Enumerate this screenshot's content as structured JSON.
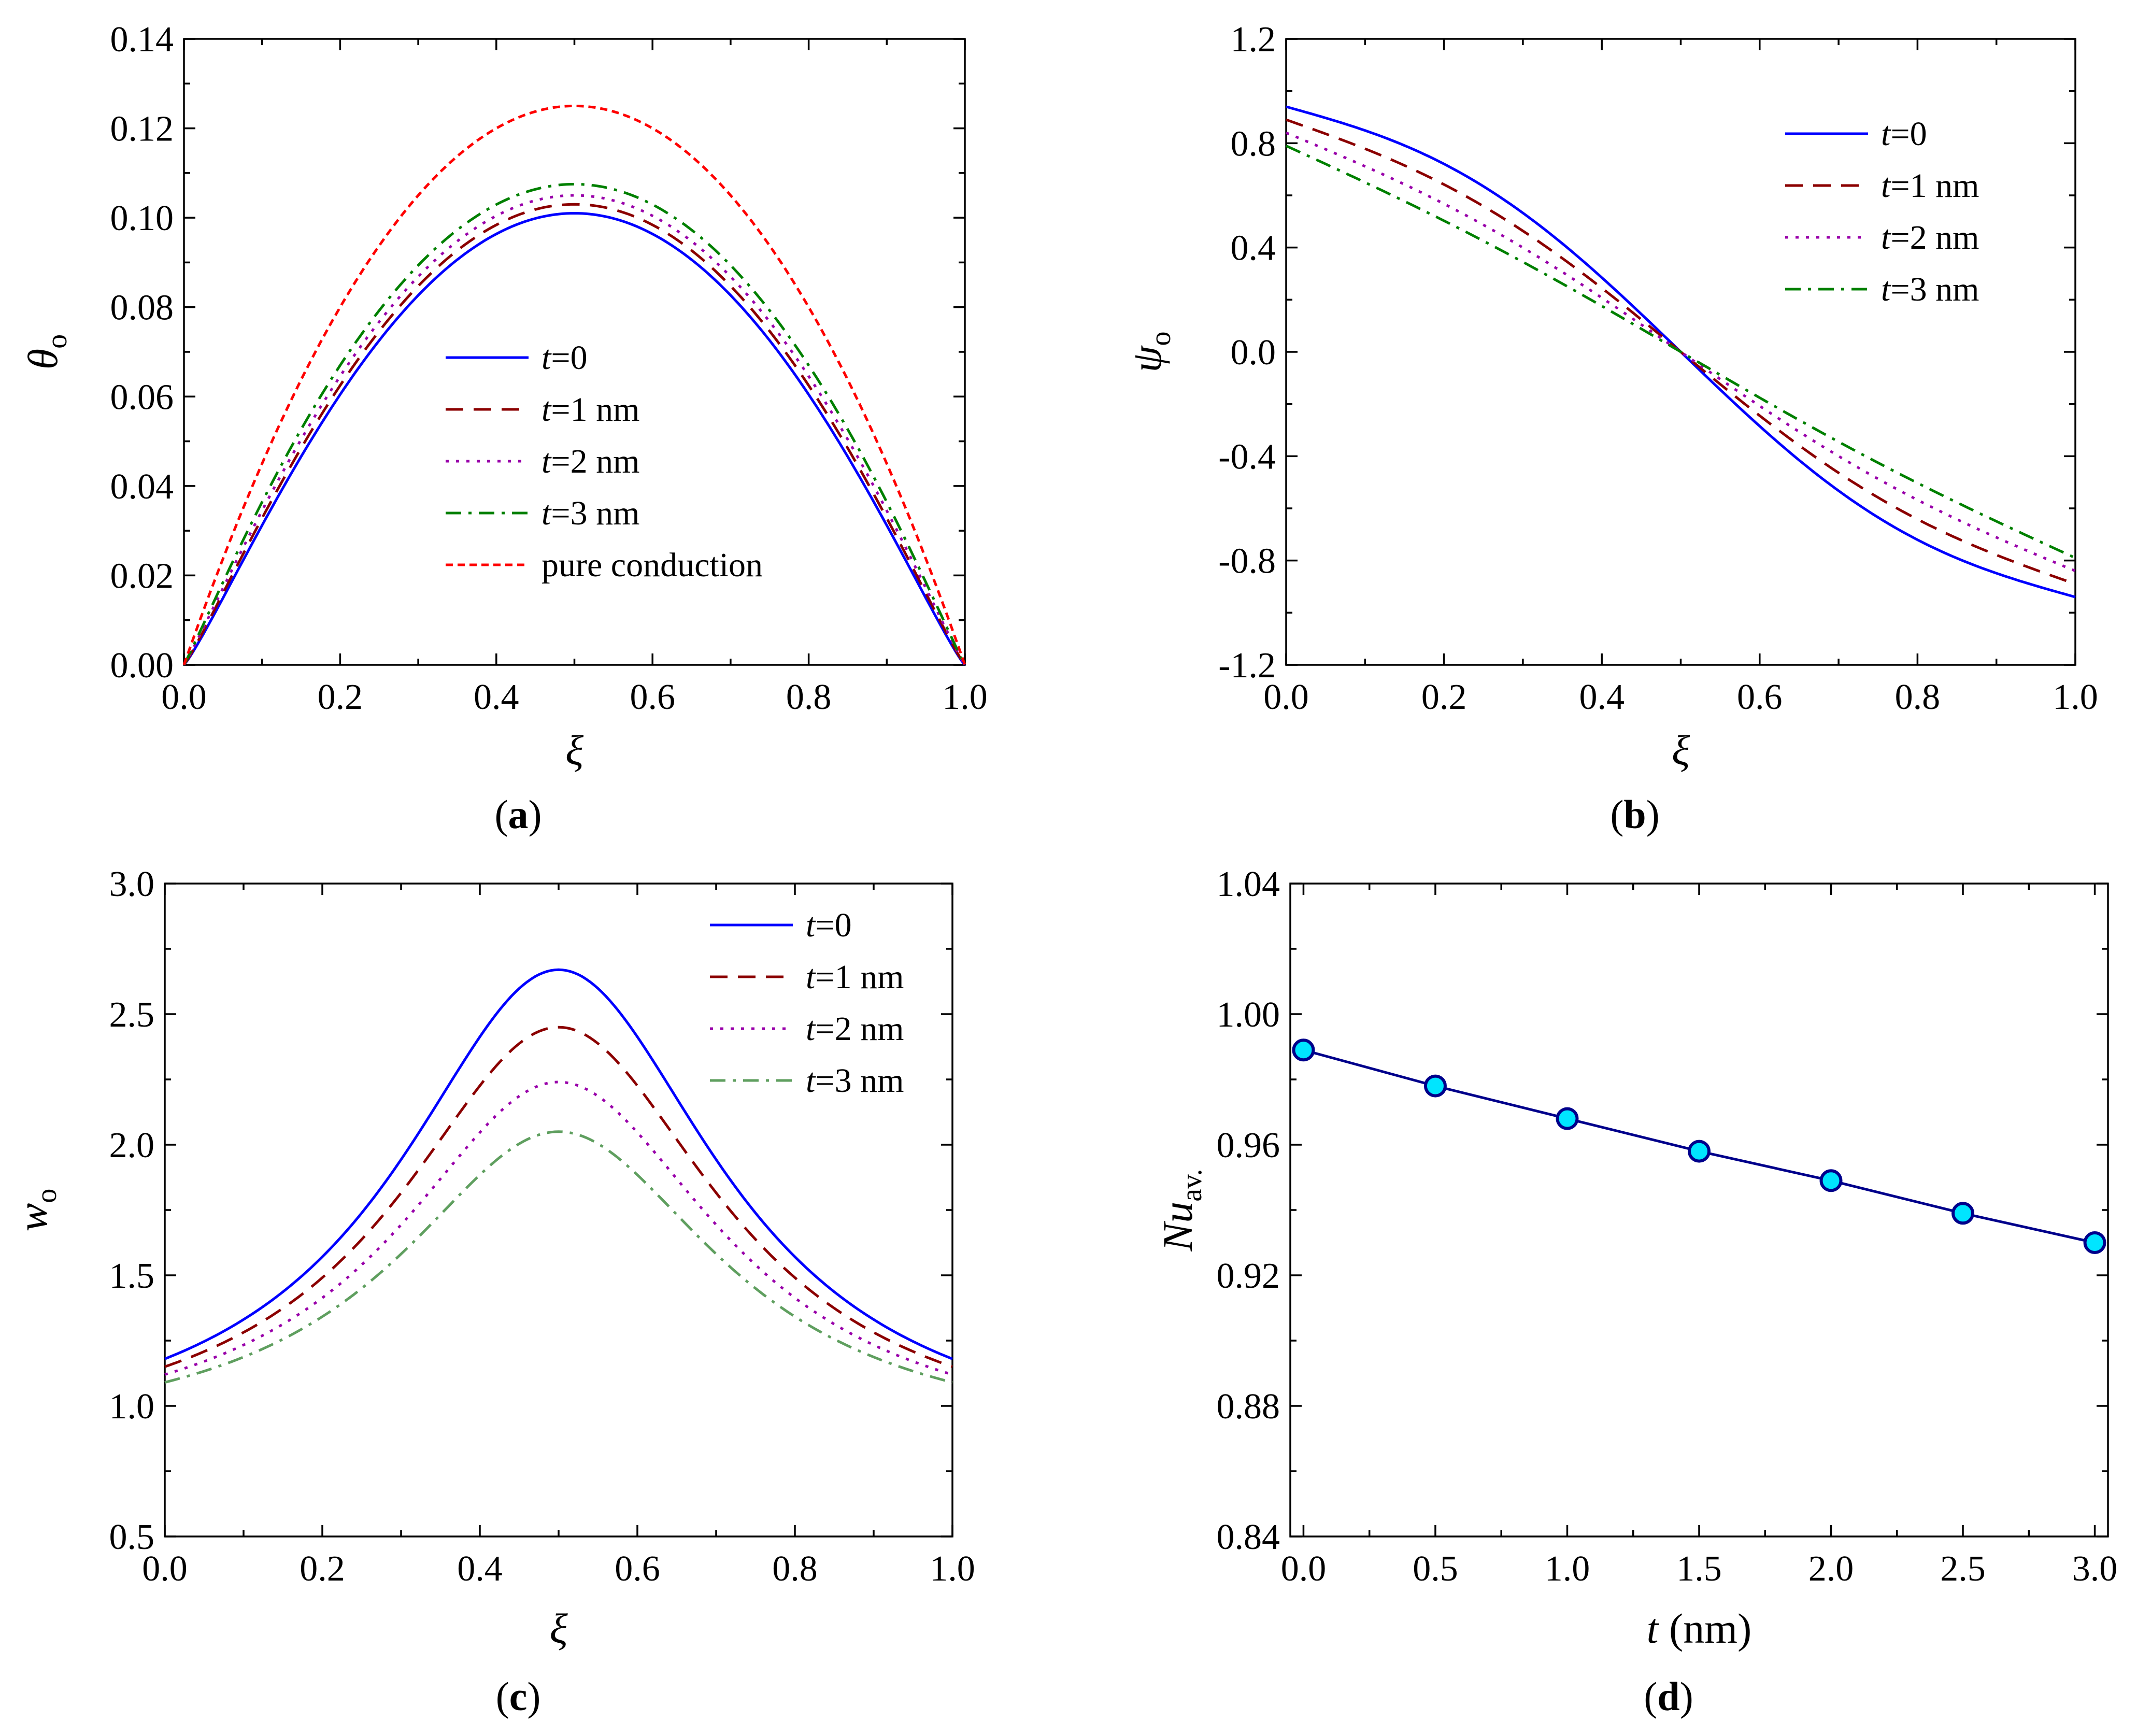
{
  "chart_data": [
    {
      "id": "a",
      "type": "line",
      "caption": "a",
      "xlabel": "ξ",
      "ylabel": "θ",
      "ylabel_sub": "o",
      "xlim": [
        0,
        1
      ],
      "ylim": [
        0,
        0.14
      ],
      "xticks": [
        "0.0",
        "0.2",
        "0.4",
        "0.6",
        "0.8",
        "1.0"
      ],
      "yticks": [
        "0.00",
        "0.02",
        "0.04",
        "0.06",
        "0.08",
        "0.10",
        "0.12",
        "0.14"
      ],
      "legend_position": "center",
      "series": [
        {
          "name": "t=0",
          "var": "t",
          "rest": "=0",
          "color": "#0000ff",
          "dash": "solid",
          "peak": 0.101,
          "exponent": 1.15
        },
        {
          "name": "t=1 nm",
          "var": "t",
          "rest": "=1 nm",
          "color": "#8b0000",
          "dash": "dash",
          "peak": 0.103,
          "exponent": 1.12
        },
        {
          "name": "t=2 nm",
          "var": "t",
          "rest": "=2 nm",
          "color": "#9900aa",
          "dash": "dot",
          "peak": 0.105,
          "exponent": 1.09
        },
        {
          "name": "t=3 nm",
          "var": "t",
          "rest": "=3 nm",
          "color": "#008000",
          "dash": "dashdot",
          "peak": 0.1075,
          "exponent": 1.06
        },
        {
          "name": "pure conduction",
          "var": "",
          "rest": "pure conduction",
          "color": "#ff0000",
          "dash": "shortdash",
          "peak": 0.125,
          "exponent": 1.0
        }
      ]
    },
    {
      "id": "b",
      "type": "line",
      "caption": "b",
      "xlabel": "ξ",
      "ylabel": "ψ",
      "ylabel_sub": "o",
      "xlim": [
        0,
        1
      ],
      "ylim": [
        -1.2,
        1.2
      ],
      "xticks": [
        "0.0",
        "0.2",
        "0.4",
        "0.6",
        "0.8",
        "1.0"
      ],
      "yticks": [
        "-1.2",
        "-0.8",
        "-0.4",
        "0.0",
        "0.4",
        "0.8",
        "1.2"
      ],
      "legend_position": "top-right",
      "series": [
        {
          "name": "t=0",
          "var": "t",
          "rest": "=0",
          "color": "#0000ff",
          "dash": "solid",
          "amplitude": 0.94,
          "curvature": 0.55
        },
        {
          "name": "t=1 nm",
          "var": "t",
          "rest": "=1 nm",
          "color": "#8b0000",
          "dash": "dash",
          "amplitude": 0.89,
          "curvature": 0.4
        },
        {
          "name": "t=2 nm",
          "var": "t",
          "rest": "=2 nm",
          "color": "#9900aa",
          "dash": "dot",
          "amplitude": 0.84,
          "curvature": 0.25
        },
        {
          "name": "t=3 nm",
          "var": "t",
          "rest": "=3 nm",
          "color": "#008000",
          "dash": "dashdot",
          "amplitude": 0.79,
          "curvature": 0.12
        }
      ]
    },
    {
      "id": "c",
      "type": "line",
      "caption": "c",
      "xlabel": "ξ",
      "ylabel": "w",
      "ylabel_sub": "o",
      "xlim": [
        0,
        1
      ],
      "ylim": [
        0.5,
        3.0
      ],
      "xticks": [
        "0.0",
        "0.2",
        "0.4",
        "0.6",
        "0.8",
        "1.0"
      ],
      "yticks": [
        "0.5",
        "1.0",
        "1.5",
        "2.0",
        "2.5",
        "3.0"
      ],
      "legend_position": "top-right",
      "series": [
        {
          "name": "t=0",
          "var": "t",
          "rest": "=0",
          "color": "#0000ff",
          "dash": "solid",
          "end": 1.18,
          "peak": 2.67
        },
        {
          "name": "t=1 nm",
          "var": "t",
          "rest": "=1 nm",
          "color": "#8b0000",
          "dash": "dash",
          "end": 1.15,
          "peak": 2.45
        },
        {
          "name": "t=2 nm",
          "var": "t",
          "rest": "=2 nm",
          "color": "#9900aa",
          "dash": "dot",
          "end": 1.12,
          "peak": 2.24
        },
        {
          "name": "t=3 nm",
          "var": "t",
          "rest": "=3 nm",
          "color": "#5f9f5f",
          "dash": "dashdot",
          "end": 1.09,
          "peak": 2.05
        }
      ]
    },
    {
      "id": "d",
      "type": "scatter",
      "caption": "d",
      "xlabel": "t",
      "xlabel_rest": " (nm)",
      "ylabel": "Nu",
      "ylabel_sub": "av.",
      "xlim": [
        -0.05,
        3.05
      ],
      "ylim": [
        0.84,
        1.04
      ],
      "xticks": [
        "0.0",
        "0.5",
        "1.0",
        "1.5",
        "2.0",
        "2.5",
        "3.0"
      ],
      "yticks": [
        "0.84",
        "0.88",
        "0.92",
        "0.96",
        "1.00",
        "1.04"
      ],
      "line_color": "#00008b",
      "marker_color": "#00e5ff",
      "x": [
        0.0,
        0.5,
        1.0,
        1.5,
        2.0,
        2.5,
        3.0
      ],
      "y": [
        0.989,
        0.978,
        0.968,
        0.958,
        0.949,
        0.939,
        0.93
      ]
    }
  ]
}
